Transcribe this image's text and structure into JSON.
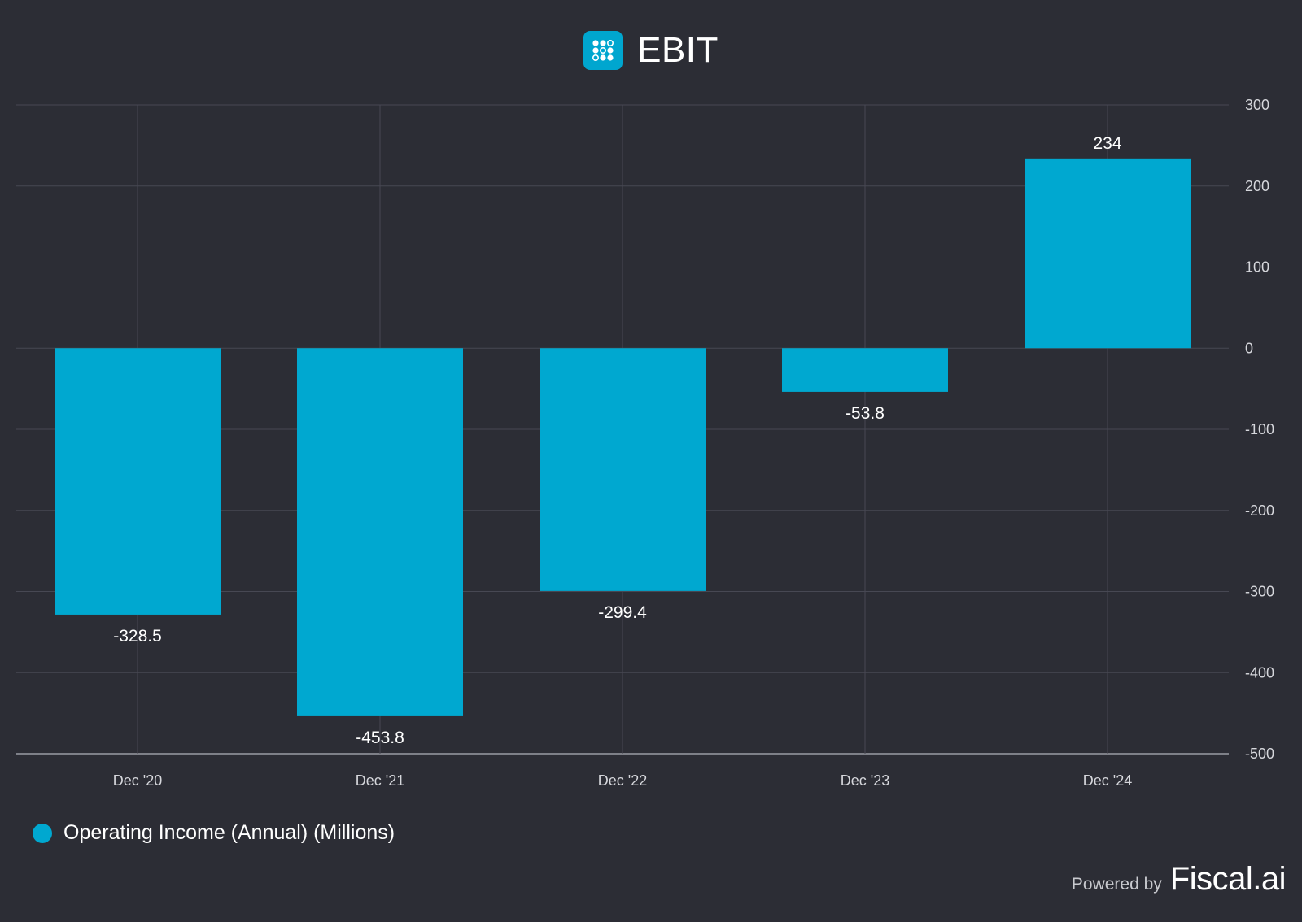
{
  "header": {
    "title": "EBIT",
    "logo_icon": "grid-dots-icon"
  },
  "colors": {
    "background": "#2c2d35",
    "bar": "#00a8d0",
    "grid": "#474853",
    "axis": "#9a9ba3",
    "accent": "#00a6cf"
  },
  "chart_data": {
    "type": "bar",
    "title": "EBIT",
    "categories": [
      "Dec '20",
      "Dec '21",
      "Dec '22",
      "Dec '23",
      "Dec '24"
    ],
    "series": [
      {
        "name": "Operating Income (Annual) (Millions)",
        "values": [
          -328.5,
          -453.8,
          -299.4,
          -53.8,
          234
        ]
      }
    ],
    "data_labels": [
      "-328.5",
      "-453.8",
      "-299.4",
      "-53.8",
      "234"
    ],
    "ylim": [
      -500,
      300
    ],
    "yticks": [
      300,
      200,
      100,
      0,
      -100,
      -200,
      -300,
      -400,
      -500
    ],
    "y_axis_position": "right",
    "grid": true,
    "legend_position": "bottom-left"
  },
  "legend": {
    "label": "Operating Income (Annual) (Millions)"
  },
  "footer": {
    "powered_by": "Powered by",
    "brand": "Fiscal.ai"
  }
}
